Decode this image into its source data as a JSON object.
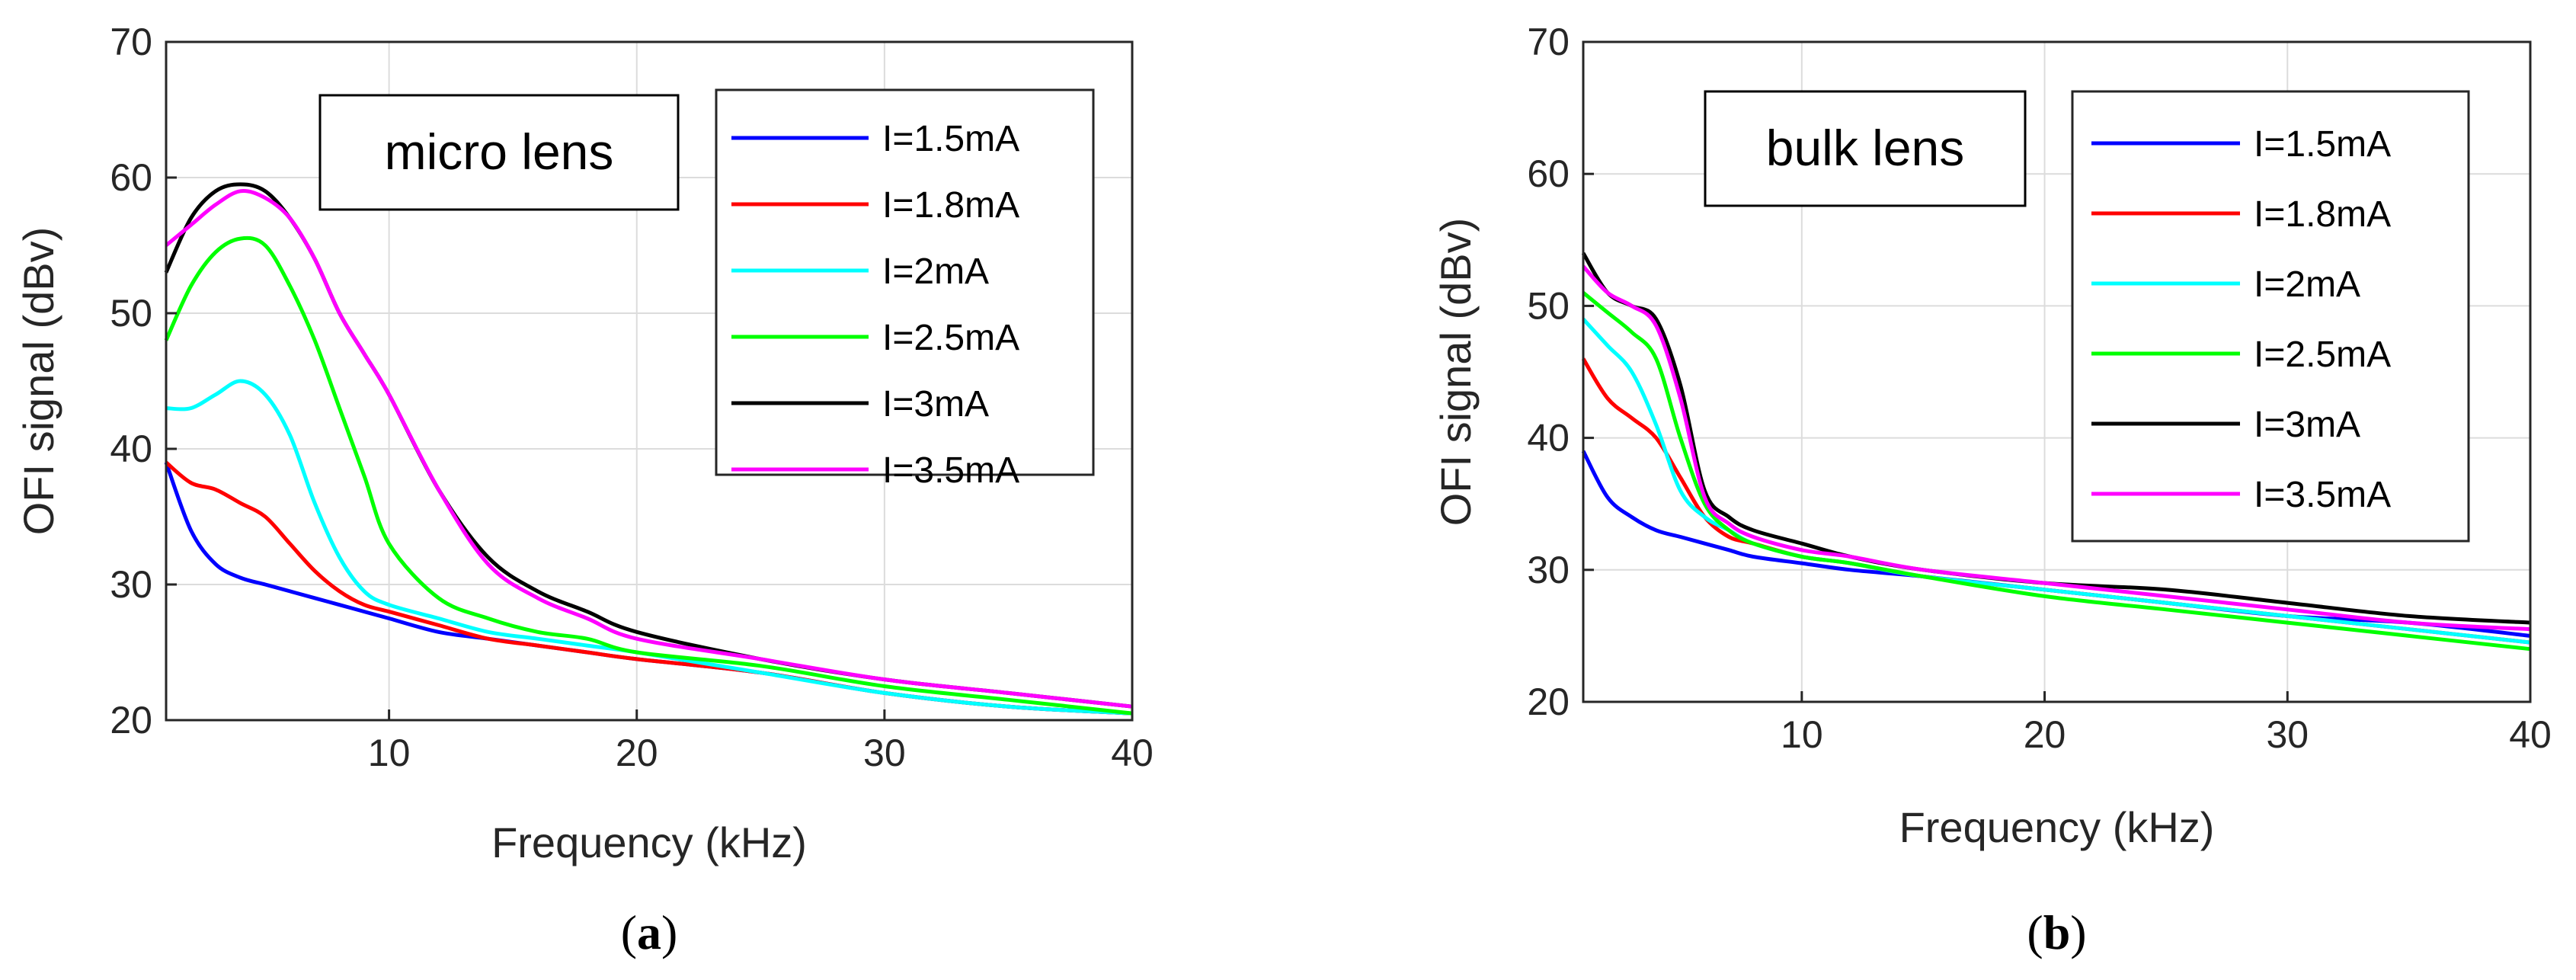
{
  "chart_data": [
    {
      "type": "line",
      "panel_label": {
        "open": "(",
        "letter": "a",
        "close": ")"
      },
      "annotation": "micro lens",
      "xlabel": "Frequency (kHz)",
      "ylabel": "OFI signal (dBv)",
      "xlim": [
        1,
        40
      ],
      "ylim": [
        20,
        70
      ],
      "xticks": [
        10,
        20,
        30,
        40
      ],
      "yticks": [
        20,
        30,
        40,
        50,
        60,
        70
      ],
      "grid": true,
      "legend_position": "top-right",
      "series": [
        {
          "name": "I=1.5mA",
          "color": "#0000ff",
          "x": [
            1,
            2,
            3,
            4,
            5,
            6,
            7,
            8,
            9,
            10,
            12,
            14,
            16,
            18,
            20,
            25,
            30,
            35,
            40
          ],
          "y": [
            39,
            34,
            31.5,
            30.5,
            30,
            29.5,
            29,
            28.5,
            28,
            27.5,
            26.5,
            26,
            25.5,
            25,
            24.5,
            23.5,
            22,
            21,
            20.5
          ]
        },
        {
          "name": "I=1.8mA",
          "color": "#ff0000",
          "x": [
            1,
            2,
            3,
            4,
            5,
            6,
            7,
            8,
            9,
            10,
            12,
            14,
            16,
            18,
            20,
            25,
            30,
            35,
            40
          ],
          "y": [
            39,
            37.5,
            37,
            36,
            35,
            33,
            31,
            29.5,
            28.5,
            28,
            27,
            26,
            25.5,
            25,
            24.5,
            23.5,
            22,
            21,
            20.5
          ]
        },
        {
          "name": "I=2mA",
          "color": "#00ffff",
          "x": [
            1,
            2,
            3,
            4,
            5,
            6,
            7,
            8,
            9,
            10,
            12,
            14,
            16,
            18,
            20,
            25,
            30,
            35,
            40
          ],
          "y": [
            43,
            43,
            44,
            45,
            44,
            41,
            36,
            32,
            29.5,
            28.5,
            27.5,
            26.5,
            26,
            25.5,
            25,
            23.5,
            22,
            21,
            20.5
          ]
        },
        {
          "name": "I=2.5mA",
          "color": "#00ff00",
          "x": [
            1,
            2,
            3,
            4,
            5,
            6,
            7,
            8,
            9,
            10,
            12,
            14,
            16,
            18,
            20,
            25,
            30,
            35,
            40
          ],
          "y": [
            48,
            52,
            54.5,
            55.5,
            55,
            52,
            48,
            43,
            38,
            33,
            29,
            27.5,
            26.5,
            26,
            25,
            24,
            22.5,
            21.5,
            20.5
          ]
        },
        {
          "name": "I=3mA",
          "color": "#000000",
          "x": [
            1,
            2,
            3,
            4,
            5,
            6,
            7,
            8,
            9,
            10,
            12,
            14,
            16,
            18,
            20,
            25,
            30,
            35,
            40
          ],
          "y": [
            53,
            57,
            59,
            59.5,
            59,
            57,
            54,
            50,
            47,
            44,
            37,
            32,
            29.5,
            28,
            26.5,
            24.5,
            23,
            22,
            21
          ]
        },
        {
          "name": "I=3.5mA",
          "color": "#ff00ff",
          "x": [
            1,
            2,
            3,
            4,
            5,
            6,
            7,
            8,
            9,
            10,
            12,
            14,
            16,
            18,
            20,
            25,
            30,
            35,
            40
          ],
          "y": [
            55,
            56.5,
            58,
            59,
            58.5,
            57,
            54,
            50,
            47,
            44,
            37,
            31.5,
            29,
            27.5,
            26,
            24.5,
            23,
            22,
            21
          ]
        }
      ]
    },
    {
      "type": "line",
      "panel_label": {
        "open": "(",
        "letter": "b",
        "close": ")"
      },
      "annotation": "bulk lens",
      "xlabel": "Frequency (kHz)",
      "ylabel": "OFI signal (dBv)",
      "xlim": [
        1,
        40
      ],
      "ylim": [
        20,
        70
      ],
      "xticks": [
        10,
        20,
        30,
        40
      ],
      "yticks": [
        20,
        30,
        40,
        50,
        60,
        70
      ],
      "grid": true,
      "legend_position": "top-right",
      "series": [
        {
          "name": "I=1.5mA",
          "color": "#0000ff",
          "x": [
            1,
            2,
            3,
            4,
            5,
            6,
            7,
            8,
            10,
            12,
            15,
            20,
            25,
            30,
            35,
            40
          ],
          "y": [
            39,
            35.5,
            34,
            33,
            32.5,
            32,
            31.5,
            31,
            30.5,
            30,
            29.5,
            28.5,
            27.5,
            26.5,
            26,
            25
          ]
        },
        {
          "name": "I=1.8mA",
          "color": "#ff0000",
          "x": [
            1,
            2,
            3,
            4,
            5,
            6,
            7,
            8,
            10,
            12,
            15,
            20,
            25,
            30,
            35,
            40
          ],
          "y": [
            46,
            43,
            41.5,
            40,
            37,
            34,
            32.5,
            32,
            31,
            30.5,
            29.5,
            28.5,
            27.5,
            26.5,
            25.5,
            24.5
          ]
        },
        {
          "name": "I=2mA",
          "color": "#00ffff",
          "x": [
            1,
            2,
            3,
            4,
            5,
            6,
            7,
            8,
            10,
            12,
            15,
            20,
            25,
            30,
            35,
            40
          ],
          "y": [
            49,
            47,
            45,
            41,
            36,
            34,
            33,
            32,
            31,
            30.5,
            29.5,
            28.5,
            27.5,
            26.5,
            25.5,
            24.5
          ]
        },
        {
          "name": "I=2.5mA",
          "color": "#00ff00",
          "x": [
            1,
            2,
            3,
            4,
            5,
            6,
            7,
            8,
            10,
            12,
            15,
            20,
            25,
            30,
            35,
            40
          ],
          "y": [
            51,
            49.5,
            48,
            46,
            40,
            35,
            33,
            32,
            31,
            30.5,
            29.5,
            28,
            27,
            26,
            25,
            24
          ]
        },
        {
          "name": "I=3mA",
          "color": "#000000",
          "x": [
            1,
            2,
            3,
            4,
            5,
            6,
            7,
            8,
            10,
            12,
            15,
            20,
            25,
            30,
            35,
            40
          ],
          "y": [
            54,
            51,
            50,
            49,
            44,
            36,
            34,
            33,
            32,
            31,
            30,
            29,
            28.5,
            27.5,
            26.5,
            26
          ]
        },
        {
          "name": "I=3.5mA",
          "color": "#ff00ff",
          "x": [
            1,
            2,
            3,
            4,
            5,
            6,
            7,
            8,
            10,
            12,
            15,
            20,
            25,
            30,
            35,
            40
          ],
          "y": [
            53,
            51,
            50,
            48.5,
            43,
            35.5,
            33.5,
            32.5,
            31.5,
            31,
            30,
            29,
            28,
            27,
            26,
            25.5
          ]
        }
      ]
    }
  ]
}
